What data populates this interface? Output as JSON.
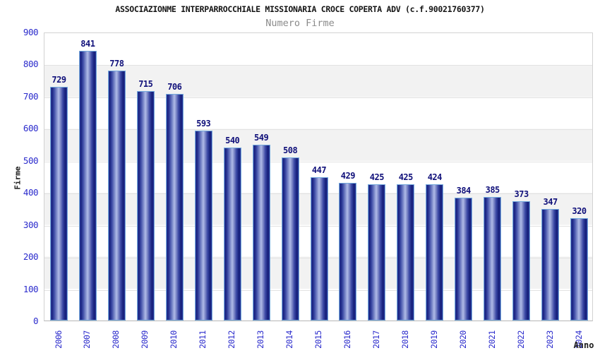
{
  "header": {
    "title": "ASSOCIAZIONME INTERPARROCCHIALE MISSIONARIA CROCE COPERTA ADV (c.f.90021760377)",
    "subtitle": "Numero Firme"
  },
  "chart_data": {
    "type": "bar",
    "title": "ASSOCIAZIONME INTERPARROCCHIALE MISSIONARIA CROCE COPERTA ADV (c.f.90021760377)",
    "subtitle": "Numero Firme",
    "xlabel": "Anno",
    "ylabel": "Firme",
    "categories": [
      "2006",
      "2007",
      "2008",
      "2009",
      "2010",
      "2011",
      "2012",
      "2013",
      "2014",
      "2015",
      "2016",
      "2017",
      "2018",
      "2019",
      "2020",
      "2021",
      "2022",
      "2023",
      "2024"
    ],
    "values": [
      729,
      841,
      778,
      715,
      706,
      593,
      540,
      549,
      508,
      447,
      429,
      425,
      425,
      424,
      384,
      385,
      373,
      347,
      320
    ],
    "ylim": [
      0,
      900
    ],
    "yticks": [
      0,
      100,
      200,
      300,
      400,
      500,
      600,
      700,
      800,
      900
    ],
    "grid": "horizontal gridlines every 100 with alternating white/gray bands",
    "legend_position": "none",
    "colors": {
      "bar_border": "#74a9dc",
      "bar_body_dark": "#18217f",
      "bar_body_light": "#b0bbe7",
      "axis_tick_label": "#2b2bcc",
      "value_label": "#10107a",
      "band_gray": "#f2f2f2",
      "gridline": "#e2e2e2",
      "title_color": "#141414",
      "subtitle_color": "#8a8a8a"
    }
  }
}
